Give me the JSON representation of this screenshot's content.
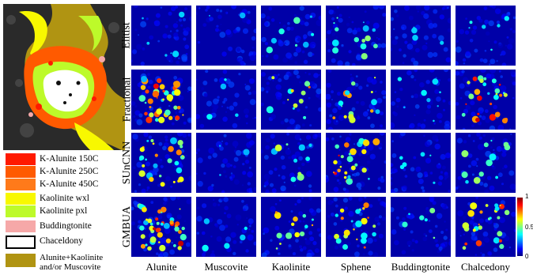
{
  "legend": [
    {
      "label": "K-Alunite 150C",
      "color": "#ff1a00"
    },
    {
      "label": "K-Alunite 250C",
      "color": "#ff5a00"
    },
    {
      "label": "K-Alunite 450C",
      "color": "#ff7a1a"
    },
    {
      "label": "Kaolinite wxl",
      "color": "#f8f800"
    },
    {
      "label": "Kaolinite pxl",
      "color": "#bdfa2a"
    },
    {
      "label": "Buddingtonite",
      "color": "#f6a8a8"
    },
    {
      "label": "Chaceldony",
      "color": "#ffffff"
    },
    {
      "label": "Alunite+Kaolinite and/or Muscovite",
      "color": "#b09412"
    }
  ],
  "rows": [
    "Elitist",
    "Fractional",
    "SUnCNN",
    "GMBUA"
  ],
  "columns": [
    "Alunite",
    "Muscovite",
    "Kaolinite",
    "Sphene",
    "Buddingtonite",
    "Chalcedony"
  ],
  "colorbar": {
    "ticks": [
      "1",
      "0.5",
      "0"
    ]
  },
  "colors": {
    "background": "#00008f",
    "low": "#0000ff",
    "mid": "#00ffff",
    "high": "#ff0000"
  }
}
